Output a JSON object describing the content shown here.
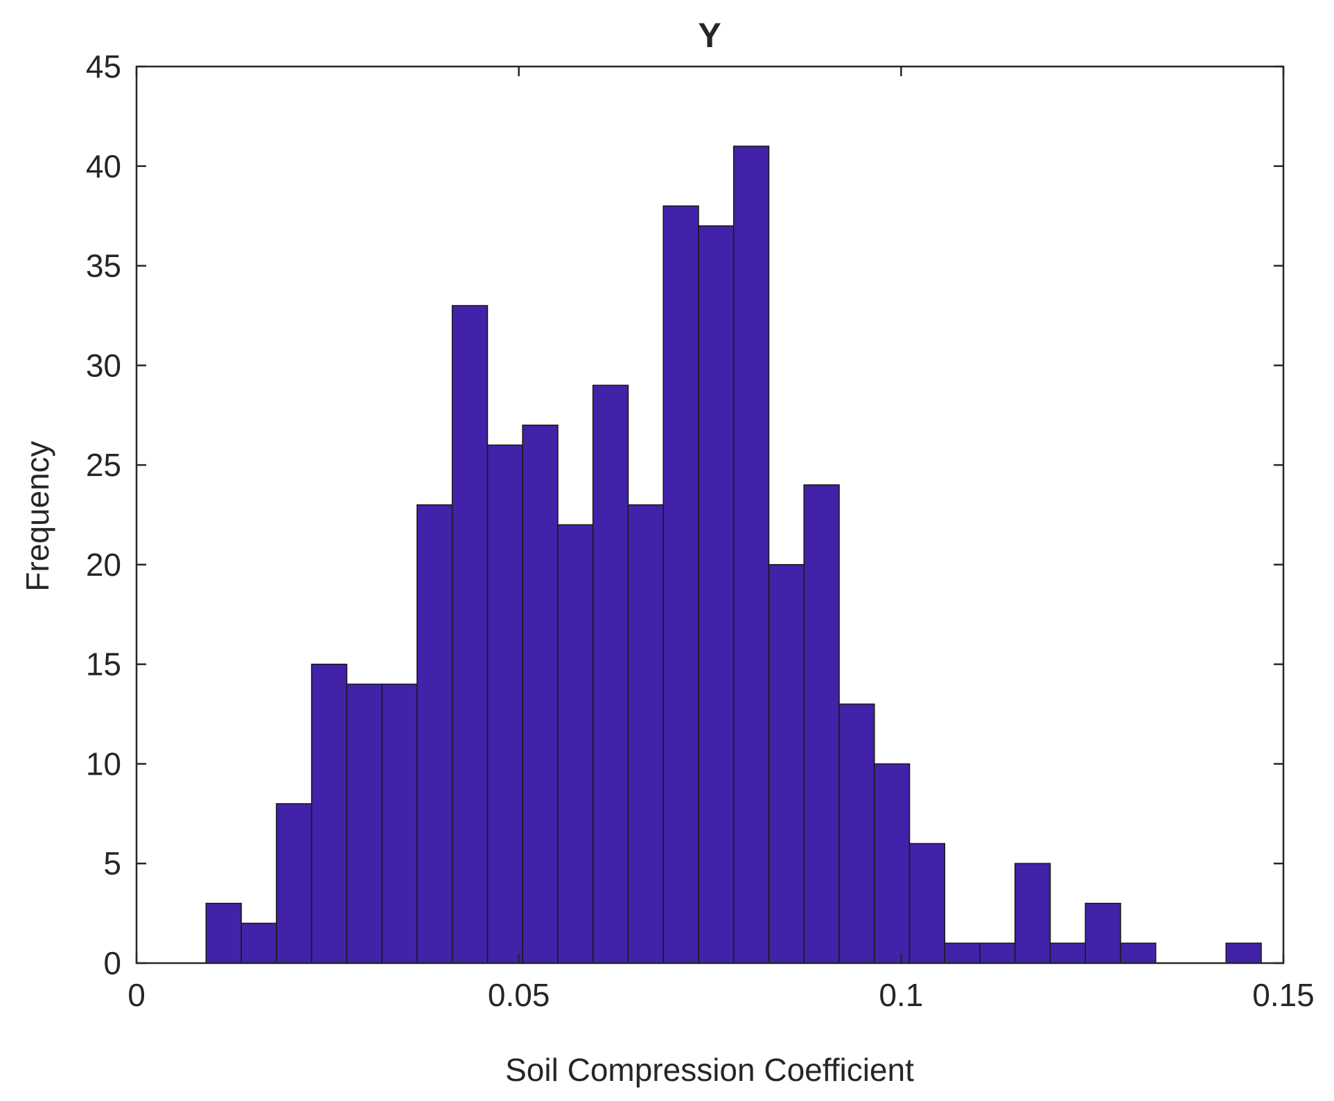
{
  "chart_data": {
    "type": "bar",
    "title": "Y",
    "xlabel": "Soil Compression Coefficient",
    "ylabel": "Frequency",
    "xlim": [
      0,
      0.15
    ],
    "ylim": [
      0,
      45
    ],
    "xticks": [
      0,
      0.05,
      0.1,
      0.15
    ],
    "xtick_labels": [
      "0",
      "0.05",
      "0.1",
      "0.15"
    ],
    "yticks": [
      0,
      5,
      10,
      15,
      20,
      25,
      30,
      35,
      40,
      45
    ],
    "ytick_labels": [
      "0",
      "5",
      "10",
      "15",
      "20",
      "25",
      "30",
      "35",
      "40",
      "45"
    ],
    "bin_edges": [
      0.0091,
      0.0137,
      0.0183,
      0.0229,
      0.0275,
      0.0321,
      0.0367,
      0.0413,
      0.0459,
      0.0505,
      0.0551,
      0.0597,
      0.0643,
      0.0689,
      0.0735,
      0.0781,
      0.0827,
      0.0873,
      0.0919,
      0.0965,
      0.1011,
      0.1057,
      0.1103,
      0.1149,
      0.1195,
      0.1241,
      0.1287,
      0.1333,
      0.1379,
      0.1425,
      0.1471
    ],
    "values": [
      3,
      2,
      8,
      15,
      14,
      14,
      23,
      33,
      26,
      27,
      22,
      29,
      23,
      38,
      37,
      41,
      20,
      24,
      13,
      10,
      6,
      1,
      1,
      5,
      1,
      3,
      1,
      0,
      0,
      1
    ],
    "bar_color": "#4222a8",
    "bar_edge_color": "#1a1a1a",
    "grid": false,
    "legend": "none"
  }
}
